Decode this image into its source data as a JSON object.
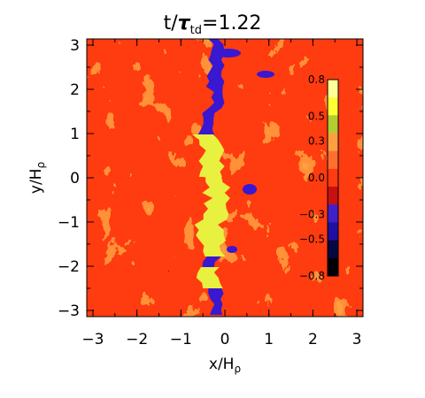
{
  "chart_data": {
    "type": "heatmap",
    "title": {
      "main": "t/",
      "tau": "τ",
      "sub": "td",
      "value": "=1.22"
    },
    "xlabel": {
      "main": "x/H",
      "sub": "ρ"
    },
    "ylabel": {
      "main": "y/H",
      "sub": "ρ"
    },
    "xlim": [
      -3.14,
      3.14
    ],
    "ylim": [
      -3.14,
      3.14
    ],
    "xticks": [
      -3,
      -2,
      -1,
      0,
      1,
      2,
      3
    ],
    "xtick_labels": [
      "−3",
      "−2",
      "−1",
      "0",
      "1",
      "2",
      "3"
    ],
    "yticks": [
      -3,
      -2,
      -1,
      0,
      1,
      2,
      3
    ],
    "ytick_labels": [
      "−3",
      "−2",
      "−1",
      "0",
      "1",
      "2",
      "3"
    ],
    "colorbar": {
      "range": [
        -0.8,
        0.8
      ],
      "ticks": [
        0.8,
        0.5,
        0.3,
        0.0,
        -0.3,
        -0.5,
        -0.8
      ],
      "tick_labels": [
        "0.8",
        "0.5",
        "0.3",
        "0.0",
        "−0.3",
        "−0.5",
        "−0.8"
      ],
      "colors": [
        "#ffff99",
        "#ffff33",
        "#b3cc33",
        "#ffa040",
        "#ff7030",
        "#ff3b10",
        "#c81010",
        "#4020c8",
        "#2010a0",
        "#080840",
        "#000000"
      ]
    },
    "field_description_values": {
      "background_level": 0.35,
      "front_center_x": -0.25,
      "front_min_level": -0.6,
      "front_max_level": 0.75
    }
  }
}
